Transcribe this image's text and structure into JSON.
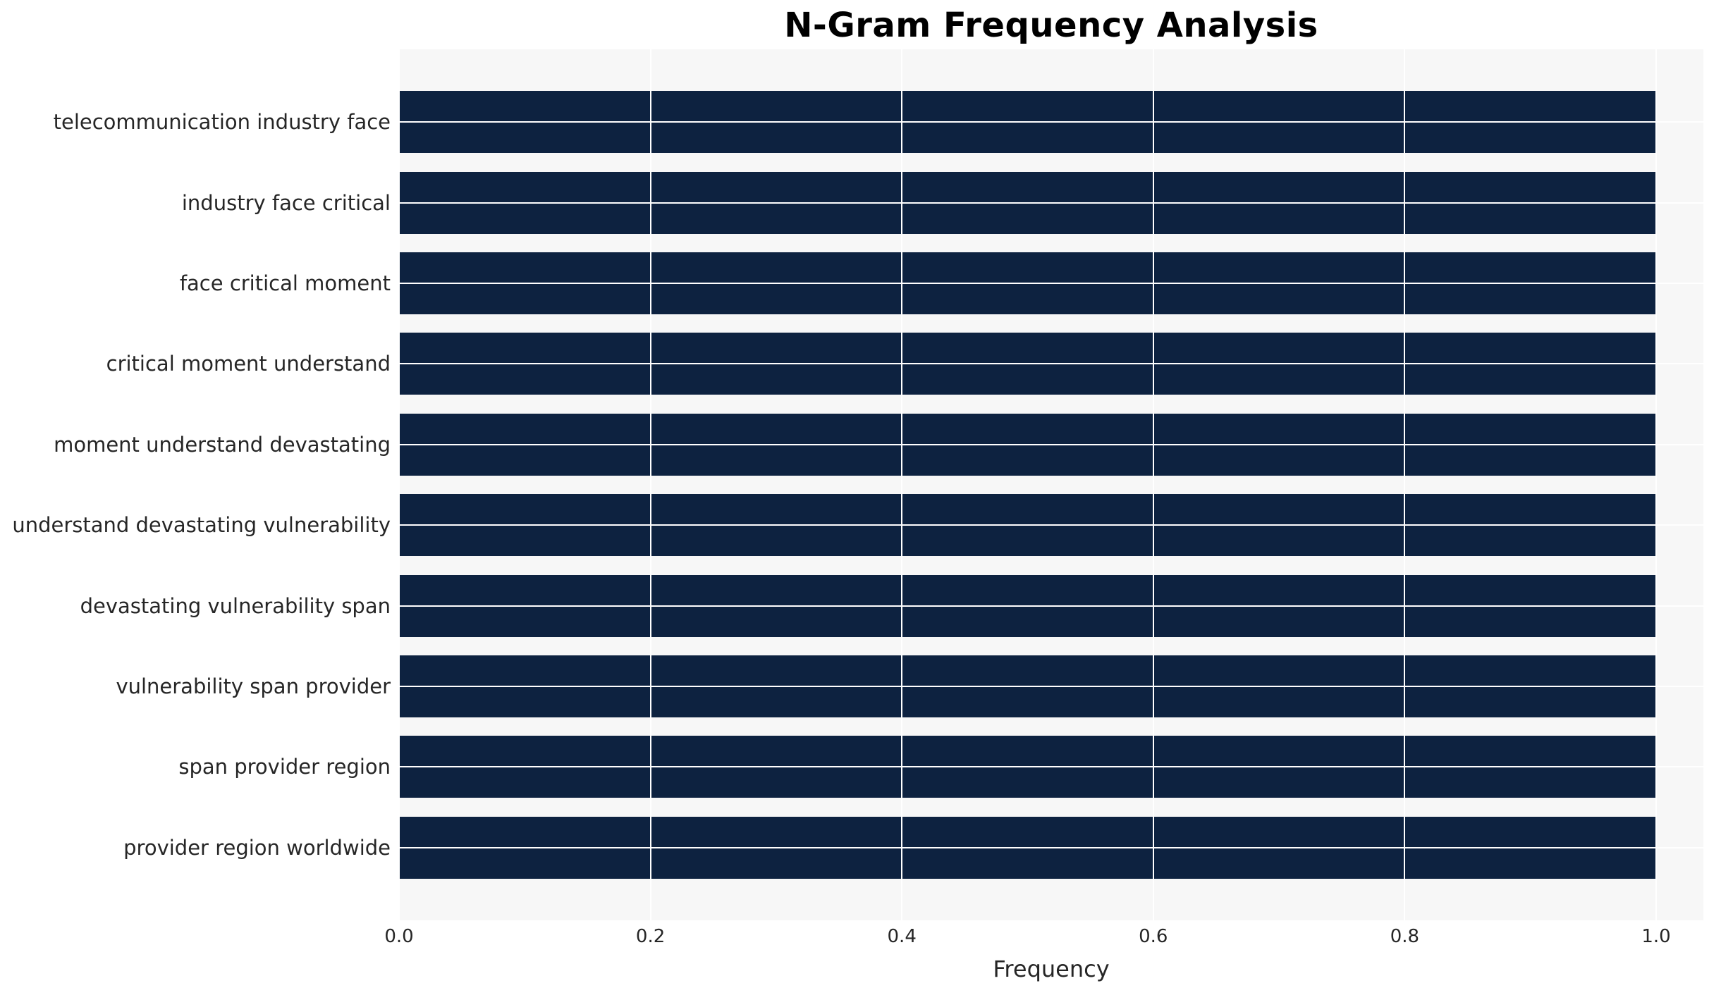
{
  "chart_data": {
    "type": "bar",
    "orientation": "horizontal",
    "title": "N-Gram Frequency Analysis",
    "xlabel": "Frequency",
    "ylabel": "",
    "categories": [
      "telecommunication industry face",
      "industry face critical",
      "face critical moment",
      "critical moment understand",
      "moment understand devastating",
      "understand devastating vulnerability",
      "devastating vulnerability span",
      "vulnerability span provider",
      "span provider region",
      "provider region worldwide"
    ],
    "values": [
      1.0,
      1.0,
      1.0,
      1.0,
      1.0,
      1.0,
      1.0,
      1.0,
      1.0,
      1.0
    ],
    "xlim": [
      0.0,
      1.0
    ],
    "xticks": [
      0.0,
      0.2,
      0.4,
      0.6,
      0.8,
      1.0
    ],
    "grid": true,
    "legend": false,
    "bar_color": "#0d2240",
    "plot_background": "#f7f7f7",
    "grid_color": "#ffffff",
    "text_color": "#262626"
  }
}
